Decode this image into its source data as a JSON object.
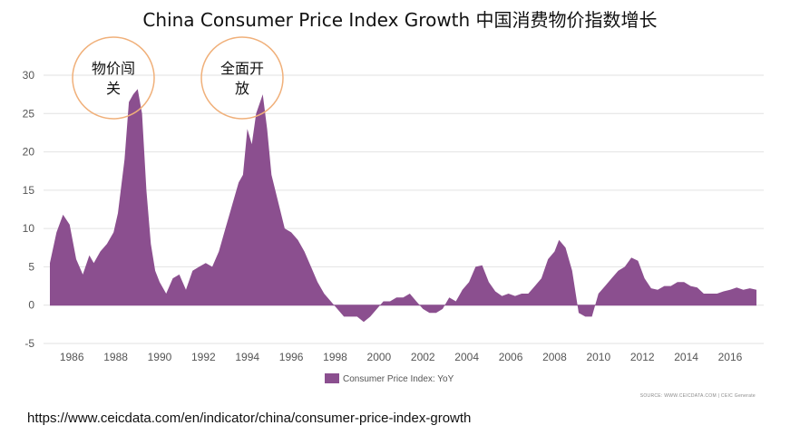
{
  "title": "China Consumer Price Index Growth 中国消费物价指数增长",
  "url": "https://www.ceicdata.com/en/indicator/china/consumer-price-index-growth",
  "colors": {
    "series": "#8b4f8f",
    "grid": "#e2e2e2",
    "annotation": "#f0b07a"
  },
  "annotations": [
    {
      "line1": "物价闯",
      "line2": "关"
    },
    {
      "line1": "全面开",
      "line2": "放"
    }
  ],
  "chart_data": {
    "type": "area",
    "title": "China Consumer Price Index Growth 中国消费物价指数增长",
    "xlabel": "",
    "ylabel": "",
    "ylim": [
      -5,
      30
    ],
    "xlim": [
      1985.0,
      2017.2
    ],
    "y_ticks": [
      30,
      25,
      20,
      15,
      10,
      5,
      0,
      -5
    ],
    "x_ticks": [
      1986,
      1988,
      1990,
      1992,
      1994,
      1996,
      1998,
      2000,
      2002,
      2004,
      2006,
      2008,
      2010,
      2012,
      2014,
      2016
    ],
    "grid": true,
    "legend_position": "bottom-center",
    "source": "SOURCE: WWW.CEICDATA.COM | CEIC Generate",
    "series": [
      {
        "name": "Consumer Price Index: YoY",
        "x": [
          1985.0,
          1985.3,
          1985.6,
          1985.9,
          1986.2,
          1986.5,
          1986.8,
          1987.0,
          1987.3,
          1987.6,
          1987.9,
          1988.1,
          1988.4,
          1988.6,
          1988.8,
          1989.0,
          1989.2,
          1989.4,
          1989.6,
          1989.8,
          1990.0,
          1990.3,
          1990.6,
          1990.9,
          1991.2,
          1991.5,
          1991.8,
          1992.1,
          1992.4,
          1992.7,
          1993.0,
          1993.3,
          1993.6,
          1993.8,
          1994.0,
          1994.2,
          1994.4,
          1994.7,
          1994.9,
          1995.1,
          1995.4,
          1995.7,
          1996.0,
          1996.3,
          1996.6,
          1996.9,
          1997.2,
          1997.5,
          1997.8,
          1998.1,
          1998.4,
          1998.7,
          1999.0,
          1999.3,
          1999.6,
          1999.9,
          2000.2,
          2000.5,
          2000.8,
          2001.1,
          2001.4,
          2001.7,
          2002.0,
          2002.3,
          2002.6,
          2002.9,
          2003.2,
          2003.5,
          2003.8,
          2004.1,
          2004.4,
          2004.7,
          2005.0,
          2005.3,
          2005.6,
          2005.9,
          2006.2,
          2006.5,
          2006.8,
          2007.1,
          2007.4,
          2007.7,
          2008.0,
          2008.2,
          2008.5,
          2008.8,
          2009.1,
          2009.4,
          2009.7,
          2010.0,
          2010.3,
          2010.6,
          2010.9,
          2011.2,
          2011.5,
          2011.8,
          2012.1,
          2012.4,
          2012.7,
          2013.0,
          2013.3,
          2013.6,
          2013.9,
          2014.2,
          2014.5,
          2014.8,
          2015.1,
          2015.4,
          2015.7,
          2016.0,
          2016.3,
          2016.6,
          2016.9,
          2017.2
        ],
        "values": [
          5.5,
          9.5,
          11.8,
          10.5,
          6.0,
          4.0,
          6.5,
          5.5,
          7.0,
          8.0,
          9.5,
          12.0,
          19.0,
          26.5,
          27.5,
          28.2,
          25.0,
          15.0,
          8.0,
          4.5,
          3.0,
          1.5,
          3.5,
          4.0,
          2.0,
          4.5,
          5.0,
          5.5,
          5.0,
          7.0,
          10.0,
          13.0,
          16.0,
          17.0,
          23.0,
          21.0,
          25.0,
          27.5,
          23.0,
          17.0,
          13.5,
          10.0,
          9.5,
          8.5,
          7.0,
          5.0,
          3.0,
          1.5,
          0.5,
          -0.5,
          -1.5,
          -1.5,
          -1.5,
          -2.2,
          -1.5,
          -0.5,
          0.5,
          0.5,
          1.0,
          1.0,
          1.5,
          0.5,
          -0.5,
          -1.0,
          -1.0,
          -0.5,
          1.0,
          0.5,
          2.0,
          3.0,
          5.0,
          5.2,
          3.0,
          1.8,
          1.2,
          1.5,
          1.2,
          1.5,
          1.5,
          2.5,
          3.5,
          6.0,
          7.0,
          8.5,
          7.5,
          4.5,
          -1.0,
          -1.5,
          -1.5,
          1.5,
          2.5,
          3.5,
          4.5,
          5.0,
          6.2,
          5.8,
          3.5,
          2.2,
          2.0,
          2.5,
          2.5,
          3.0,
          3.0,
          2.5,
          2.3,
          1.5,
          1.5,
          1.5,
          1.8,
          2.0,
          2.3,
          2.0,
          2.2,
          2.0
        ]
      }
    ]
  }
}
